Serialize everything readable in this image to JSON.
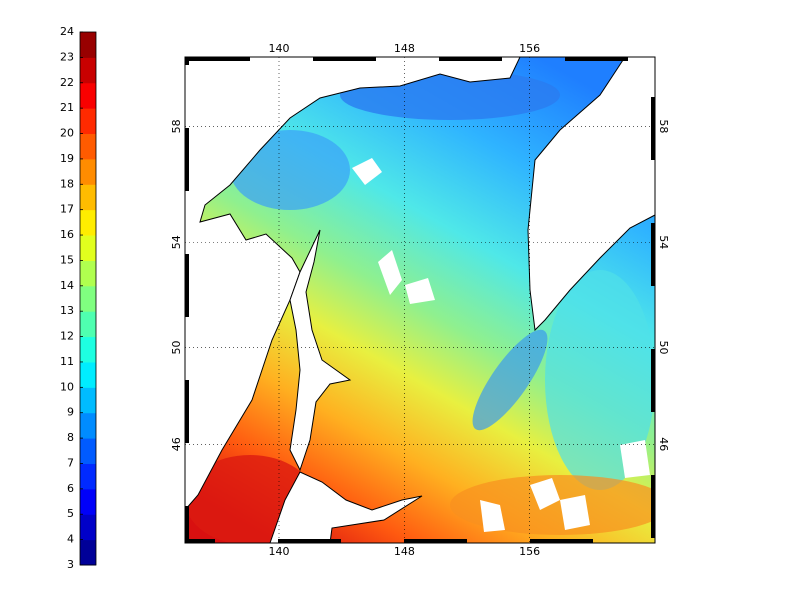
{
  "chart_data": {
    "type": "map",
    "projection": "mercator",
    "xlim": [
      134,
      164
    ],
    "ylim": [
      41.6,
      60.2
    ],
    "xticks": [
      140,
      148,
      156
    ],
    "yticks": [
      46,
      50,
      54,
      58
    ],
    "grid": true,
    "colormap": "jet",
    "colorbar": {
      "lim": [
        3,
        24
      ],
      "ticks": [
        3,
        4,
        5,
        6,
        7,
        8,
        9,
        10,
        11,
        12,
        13,
        14,
        15,
        16,
        17,
        18,
        19,
        20,
        21,
        22,
        23,
        24
      ]
    }
  }
}
